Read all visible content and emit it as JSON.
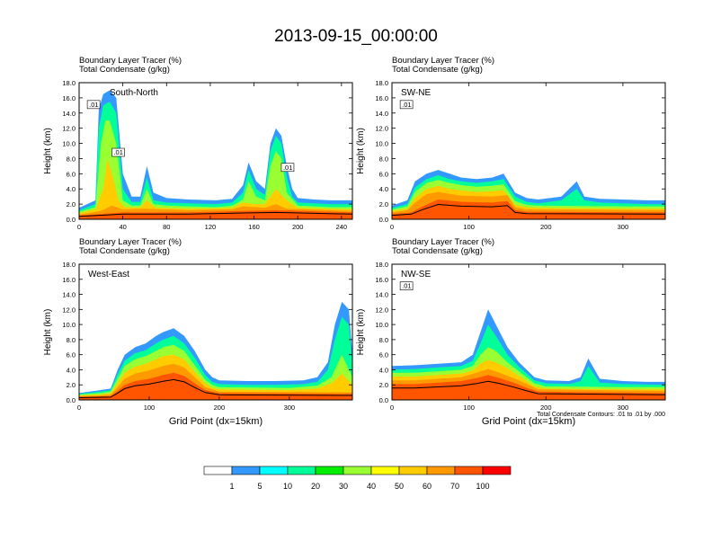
{
  "title": "2013-09-15_00:00:00",
  "chart_data": [
    {
      "type": "heatmap",
      "title": "South-North",
      "headers": [
        "Boundary Layer Tracer   (%)",
        "Total Condensate   (g/kg)"
      ],
      "xlabel": "",
      "ylabel": "Height (km)",
      "xlim": [
        0,
        250
      ],
      "ylim": [
        0,
        18
      ],
      "xticks": [
        "0",
        "40",
        "80",
        "120",
        "160",
        "200",
        "240"
      ],
      "yticks": [
        "0.0",
        "2.0",
        "4.0",
        "6.0",
        "8.0",
        "10.0",
        "12.0",
        "14.0",
        "16.0",
        "18.0"
      ],
      "contour_labels": [
        ".01",
        ".01",
        ".01"
      ],
      "profiles": [
        {
          "level": 1,
          "x": [
            0,
            15,
            18,
            22,
            28,
            34,
            40,
            48,
            56,
            62,
            68,
            80,
            100,
            125,
            140,
            150,
            155,
            162,
            170,
            175,
            180,
            185,
            190,
            195,
            200,
            215,
            230,
            250
          ],
          "top": [
            1.5,
            2.5,
            14.5,
            16.5,
            17,
            16,
            6,
            3,
            3,
            7,
            3.5,
            2.8,
            2.6,
            2.5,
            2.7,
            4.5,
            7.5,
            5,
            4,
            10,
            12,
            11,
            7,
            4,
            2.8,
            2.6,
            2.5,
            2.5
          ]
        },
        {
          "level": 3,
          "x": [
            0,
            15,
            18,
            22,
            28,
            34,
            40,
            48,
            56,
            62,
            68,
            80,
            100,
            125,
            140,
            150,
            155,
            162,
            170,
            175,
            180,
            185,
            190,
            195,
            200,
            215,
            230,
            250
          ],
          "top": [
            1.2,
            2,
            12,
            15,
            15.5,
            14,
            4,
            2.3,
            2.3,
            5.5,
            2.5,
            2.2,
            2.1,
            2,
            2.2,
            3.5,
            6.5,
            4,
            3.2,
            9,
            11,
            10,
            5.5,
            3,
            2.2,
            2.1,
            2,
            2
          ]
        },
        {
          "level": 5,
          "x": [
            0,
            15,
            20,
            24,
            28,
            34,
            40,
            48,
            56,
            62,
            68,
            80,
            100,
            125,
            140,
            150,
            155,
            162,
            170,
            175,
            180,
            185,
            190,
            200,
            215,
            230,
            250
          ],
          "top": [
            1,
            1.6,
            10,
            13,
            13,
            10,
            2.5,
            1.8,
            1.8,
            4,
            2,
            1.8,
            1.7,
            1.6,
            1.8,
            2.6,
            5,
            3,
            2.5,
            7,
            9,
            8,
            3.5,
            1.8,
            1.7,
            1.6,
            1.6
          ]
        },
        {
          "level": 7,
          "x": [
            0,
            15,
            22,
            26,
            30,
            36,
            42,
            55,
            62,
            70,
            100,
            140,
            150,
            160,
            170,
            180,
            190,
            200,
            250
          ],
          "top": [
            0.8,
            1.3,
            4,
            8,
            6,
            2.5,
            1.6,
            1.5,
            2.5,
            1.5,
            1.4,
            1.5,
            2.2,
            2,
            2,
            4,
            2.5,
            1.5,
            1.3
          ]
        },
        {
          "level": 8,
          "x": [
            0,
            20,
            30,
            40,
            60,
            100,
            140,
            150,
            170,
            180,
            190,
            250
          ],
          "top": [
            0.6,
            1.1,
            1.8,
            1.3,
            1.4,
            1.2,
            1.3,
            1.7,
            1.5,
            2,
            1.4,
            1.1
          ]
        },
        {
          "level": 9,
          "x": [
            0,
            40,
            100,
            150,
            180,
            250
          ],
          "top": [
            0.5,
            0.9,
            0.9,
            1.1,
            1.2,
            0.9
          ]
        }
      ]
    },
    {
      "type": "heatmap",
      "title": "SW-NE",
      "headers": [
        "Boundary Layer Tracer   (%)",
        "Total Condensate   (g/kg)"
      ],
      "xlabel": "",
      "ylabel": "Height (km)",
      "xlim": [
        0,
        355
      ],
      "ylim": [
        0,
        18
      ],
      "xticks": [
        "0",
        "100",
        "200",
        "300"
      ],
      "yticks": [
        "0.0",
        "2.0",
        "4.0",
        "6.0",
        "8.0",
        "10.0",
        "12.0",
        "14.0",
        "16.0",
        "18.0"
      ],
      "contour_labels": [
        ".01"
      ],
      "profiles": [
        {
          "level": 1,
          "x": [
            0,
            20,
            30,
            45,
            60,
            75,
            90,
            110,
            130,
            145,
            160,
            175,
            190,
            220,
            240,
            250,
            270,
            300,
            330,
            355
          ],
          "top": [
            1.8,
            2.5,
            5,
            6,
            6.5,
            6,
            5.5,
            5.3,
            5.5,
            6,
            3.5,
            2.8,
            2.6,
            3,
            5,
            3,
            2.7,
            2.6,
            2.5,
            2.5
          ]
        },
        {
          "level": 3,
          "x": [
            0,
            20,
            30,
            45,
            60,
            75,
            90,
            110,
            130,
            145,
            160,
            175,
            190,
            220,
            240,
            250,
            270,
            300,
            330,
            355
          ],
          "top": [
            1.5,
            2,
            4.2,
            5.3,
            5.8,
            5.3,
            5,
            4.8,
            5,
            5.3,
            3,
            2.3,
            2.1,
            2.5,
            4,
            2.5,
            2.2,
            2.1,
            2,
            2
          ]
        },
        {
          "level": 5,
          "x": [
            0,
            20,
            30,
            45,
            60,
            75,
            90,
            110,
            130,
            145,
            160,
            175,
            190,
            300,
            355
          ],
          "top": [
            1.3,
            1.7,
            3.6,
            4.8,
            5.2,
            4.8,
            4.5,
            4.3,
            4.4,
            4.6,
            2.4,
            1.9,
            1.8,
            1.7,
            1.7
          ]
        },
        {
          "level": 7,
          "x": [
            0,
            20,
            30,
            45,
            60,
            75,
            90,
            110,
            130,
            145,
            160,
            175,
            190,
            300,
            355
          ],
          "top": [
            1.1,
            1.4,
            2.8,
            4,
            4.4,
            4,
            3.8,
            3.6,
            3.7,
            3.8,
            1.9,
            1.6,
            1.5,
            1.4,
            1.4
          ]
        },
        {
          "level": 8,
          "x": [
            0,
            20,
            30,
            45,
            60,
            90,
            130,
            150,
            160,
            175,
            355
          ],
          "top": [
            0.9,
            1.2,
            2.2,
            3.3,
            3.6,
            3.1,
            3,
            3.2,
            1.6,
            1.3,
            1.2
          ]
        },
        {
          "level": 9,
          "x": [
            0,
            25,
            40,
            60,
            90,
            130,
            150,
            160,
            175,
            355
          ],
          "top": [
            0.7,
            0.9,
            1.7,
            2.6,
            2.3,
            2.2,
            2.4,
            1.2,
            1,
            0.9
          ]
        }
      ]
    },
    {
      "type": "heatmap",
      "title": "West-East",
      "headers": [
        "Boundary Layer Tracer   (%)",
        "Total Condensate   (g/kg)"
      ],
      "xlabel": "Grid Point (dx=15km)",
      "ylabel": "Height (km)",
      "xlim": [
        0,
        390
      ],
      "ylim": [
        0,
        18
      ],
      "xticks": [
        "0",
        "100",
        "200",
        "300"
      ],
      "yticks": [
        "0.0",
        "2.0",
        "4.0",
        "6.0",
        "8.0",
        "10.0",
        "12.0",
        "14.0",
        "16.0",
        "18.0"
      ],
      "contour_labels": [],
      "profiles": [
        {
          "level": 1,
          "x": [
            0,
            30,
            45,
            55,
            65,
            80,
            95,
            110,
            120,
            135,
            150,
            165,
            180,
            190,
            200,
            240,
            280,
            320,
            340,
            355,
            365,
            375,
            385,
            390
          ],
          "top": [
            0.9,
            1.3,
            1.5,
            4,
            6,
            7,
            7.5,
            8.5,
            9,
            9.5,
            8.5,
            6.5,
            4,
            3,
            2.6,
            2.5,
            2.5,
            2.6,
            3,
            5,
            10,
            13,
            12,
            6
          ]
        },
        {
          "level": 3,
          "x": [
            0,
            30,
            45,
            55,
            65,
            80,
            95,
            110,
            120,
            135,
            150,
            165,
            180,
            190,
            200,
            240,
            280,
            320,
            340,
            355,
            365,
            375,
            385,
            390
          ],
          "top": [
            0.8,
            1.1,
            1.3,
            3.4,
            5.2,
            6.2,
            6.6,
            7.5,
            8,
            8.5,
            7.5,
            5.6,
            3.3,
            2.4,
            2.1,
            2,
            2,
            2.1,
            2.4,
            4,
            8,
            11,
            10,
            4.5
          ]
        },
        {
          "level": 5,
          "x": [
            0,
            30,
            45,
            55,
            65,
            80,
            95,
            110,
            120,
            135,
            150,
            165,
            180,
            190,
            200,
            300,
            340,
            360,
            375,
            390
          ],
          "top": [
            0.7,
            0.9,
            1.1,
            2.8,
            4.5,
            5.4,
            5.8,
            6.5,
            7,
            7.3,
            6.5,
            4.6,
            2.7,
            2,
            1.7,
            1.6,
            1.9,
            3,
            6,
            3
          ]
        },
        {
          "level": 7,
          "x": [
            0,
            30,
            45,
            55,
            65,
            80,
            95,
            110,
            120,
            135,
            150,
            165,
            180,
            190,
            200,
            300,
            340,
            360,
            375,
            390
          ],
          "top": [
            0.6,
            0.7,
            0.9,
            2.2,
            3.6,
            4.4,
            4.8,
            5.4,
            5.8,
            6,
            5.4,
            3.7,
            2.2,
            1.6,
            1.4,
            1.3,
            1.5,
            2.2,
            3.5,
            2
          ]
        },
        {
          "level": 8,
          "x": [
            0,
            30,
            45,
            55,
            65,
            80,
            100,
            120,
            135,
            150,
            165,
            180,
            200,
            390
          ],
          "top": [
            0.5,
            0.6,
            0.7,
            1.7,
            2.8,
            3.5,
            3.9,
            4.5,
            4.8,
            4.3,
            3,
            1.7,
            1.1,
            1
          ]
        },
        {
          "level": 9,
          "x": [
            0,
            45,
            55,
            65,
            80,
            100,
            120,
            135,
            150,
            165,
            180,
            200,
            390
          ],
          "top": [
            0.4,
            0.5,
            1.2,
            2,
            2.5,
            2.8,
            3.3,
            3.6,
            3.2,
            2.2,
            1.3,
            0.9,
            0.8
          ]
        }
      ]
    },
    {
      "type": "heatmap",
      "title": "NW-SE",
      "headers": [
        "Boundary Layer Tracer   (%)",
        "Total Condensate   (g/kg)"
      ],
      "xlabel": "Grid Point (dx=15km)",
      "ylabel": "Height (km)",
      "xlim": [
        0,
        355
      ],
      "ylim": [
        0,
        18
      ],
      "xticks": [
        "0",
        "100",
        "200",
        "300"
      ],
      "yticks": [
        "0.0",
        "2.0",
        "4.0",
        "6.0",
        "8.0",
        "10.0",
        "12.0",
        "14.0",
        "16.0",
        "18.0"
      ],
      "contour_labels": [
        ".01"
      ],
      "contour_info": "Total Condensate Contours: .01 to .01 by .000",
      "profiles": [
        {
          "level": 1,
          "x": [
            0,
            30,
            60,
            90,
            105,
            115,
            125,
            135,
            150,
            165,
            175,
            185,
            200,
            230,
            245,
            255,
            270,
            300,
            330,
            355
          ],
          "top": [
            4.5,
            4.6,
            4.8,
            5,
            6,
            9,
            12,
            10,
            7,
            5,
            4,
            3,
            2.6,
            2.5,
            3,
            5.5,
            2.8,
            2.5,
            2.4,
            2.4
          ]
        },
        {
          "level": 3,
          "x": [
            0,
            30,
            60,
            90,
            105,
            115,
            125,
            135,
            150,
            165,
            175,
            185,
            200,
            230,
            245,
            255,
            270,
            300,
            355
          ],
          "top": [
            4,
            4.1,
            4.3,
            4.5,
            5.2,
            7.5,
            10,
            8.5,
            6,
            4.4,
            3.5,
            2.6,
            2.2,
            2.1,
            2.5,
            4.5,
            2.3,
            2.1,
            2
          ]
        },
        {
          "level": 5,
          "x": [
            0,
            30,
            60,
            90,
            105,
            115,
            125,
            135,
            150,
            165,
            175,
            185,
            200,
            300,
            355
          ],
          "top": [
            3.6,
            3.6,
            3.8,
            4,
            4.5,
            6,
            7,
            6.5,
            5,
            3.8,
            3,
            2.2,
            1.8,
            1.7,
            1.7
          ]
        },
        {
          "level": 7,
          "x": [
            0,
            30,
            60,
            90,
            105,
            115,
            125,
            135,
            150,
            165,
            175,
            185,
            200,
            300,
            355
          ],
          "top": [
            3.1,
            3.1,
            3.3,
            3.5,
            3.9,
            4.8,
            5.3,
            5,
            4.2,
            3.2,
            2.5,
            1.8,
            1.5,
            1.4,
            1.4
          ]
        },
        {
          "level": 8,
          "x": [
            0,
            30,
            60,
            90,
            110,
            125,
            140,
            160,
            175,
            190,
            355
          ],
          "top": [
            2.6,
            2.6,
            2.8,
            3,
            3.6,
            4.1,
            3.6,
            2.8,
            2.1,
            1.4,
            1.2
          ]
        },
        {
          "level": 9,
          "x": [
            0,
            30,
            60,
            90,
            110,
            125,
            140,
            160,
            175,
            190,
            355
          ],
          "top": [
            2.1,
            2.1,
            2.3,
            2.5,
            2.9,
            3.3,
            2.9,
            2.2,
            1.6,
            1.1,
            0.9
          ]
        }
      ]
    }
  ],
  "colorbar": {
    "labels": [
      "1",
      "5",
      "10",
      "20",
      "30",
      "40",
      "50",
      "60",
      "70",
      "100"
    ],
    "colors": [
      "#ffffff",
      "#3399ff",
      "#00ffff",
      "#00ff99",
      "#00ee00",
      "#99ff33",
      "#ffff00",
      "#ffcc00",
      "#ff9900",
      "#ff5500",
      "#ff0000"
    ]
  }
}
